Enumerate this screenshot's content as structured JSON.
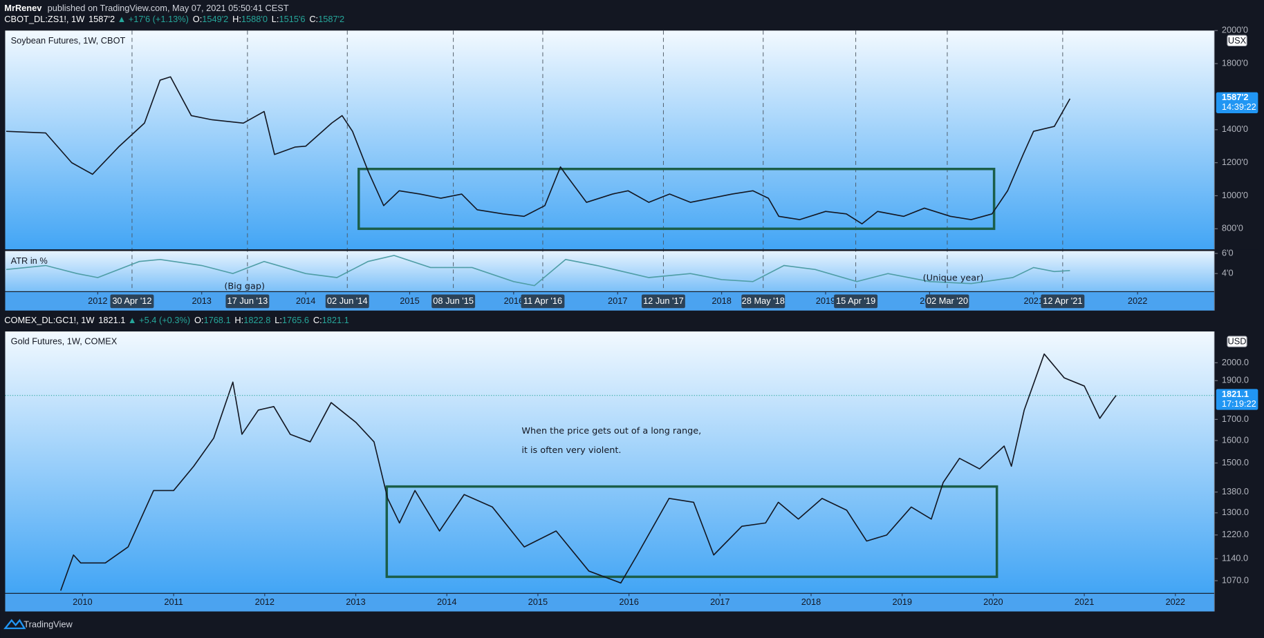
{
  "header": {
    "author": "MrRenev",
    "published": "published on TradingView.com, May 07, 2021 05:50:41 CEST"
  },
  "chart_data": [
    {
      "type": "line",
      "symbol": "CBOT_DL:ZS1!, 1W",
      "change": "▲ +17'6 (+1.13%)",
      "ohlc_labels": [
        "O:",
        "H:",
        "L:",
        "C:"
      ],
      "ohlc_values": [
        "1549'2",
        "1588'0",
        "1515'6",
        "1587'2"
      ],
      "title": "Soybean Futures, 1W, CBOT",
      "currency": "USX",
      "last_price": {
        "value": 1587.25,
        "label": "1587'2"
      },
      "countdown": "14:39:22",
      "color": "#131722",
      "x": [
        2011.12,
        2011.5,
        2011.75,
        2011.95,
        2012.2,
        2012.45,
        2012.6,
        2012.7,
        2012.9,
        2013.1,
        2013.4,
        2013.6,
        2013.7,
        2013.9,
        2014.0,
        2014.25,
        2014.35,
        2014.45,
        2014.6,
        2014.75,
        2014.9,
        2015.1,
        2015.3,
        2015.5,
        2015.65,
        2015.9,
        2016.1,
        2016.3,
        2016.45,
        2016.5,
        2016.7,
        2016.95,
        2017.1,
        2017.3,
        2017.5,
        2017.7,
        2017.9,
        2018.1,
        2018.3,
        2018.45,
        2018.55,
        2018.75,
        2019.0,
        2019.2,
        2019.35,
        2019.5,
        2019.75,
        2019.95,
        2020.2,
        2020.4,
        2020.6,
        2020.75,
        2020.9,
        2021.0,
        2021.2,
        2021.35
      ],
      "values": [
        1390,
        1380,
        1200,
        1130,
        1295,
        1440,
        1700,
        1720,
        1485,
        1460,
        1440,
        1510,
        1250,
        1295,
        1300,
        1440,
        1485,
        1390,
        1150,
        940,
        1030,
        1010,
        985,
        1010,
        915,
        890,
        875,
        940,
        1175,
        1130,
        960,
        1010,
        1030,
        960,
        1010,
        960,
        985,
        1010,
        1030,
        985,
        875,
        855,
        905,
        890,
        830,
        905,
        875,
        925,
        875,
        855,
        890,
        1030,
        1250,
        1390,
        1420,
        1587.25
      ],
      "xlim": [
        2011.11,
        2022.74
      ],
      "xticks": [
        2012,
        2013,
        2014,
        2015,
        2016,
        2017,
        2018,
        2019,
        2020,
        2021,
        2022
      ],
      "markers": [
        {
          "value": 2012.33,
          "label": "30 Apr '12"
        },
        {
          "value": 2013.44,
          "label": "17 Jun '13"
        },
        {
          "value": 2014.4,
          "label": "02 Jun '14"
        },
        {
          "value": 2015.42,
          "label": "08 Jun '15"
        },
        {
          "value": 2016.28,
          "label": "11 Apr '16"
        },
        {
          "value": 2017.44,
          "label": "12 Jun '17"
        },
        {
          "value": 2018.4,
          "label": "28 May '18"
        },
        {
          "value": 2019.29,
          "label": "15 Apr '19"
        },
        {
          "value": 2020.17,
          "label": "02 Mar '20"
        },
        {
          "value": 2021.28,
          "label": "12 Apr '21"
        }
      ],
      "ylim": [
        675,
        2000
      ],
      "log": false,
      "grid": false,
      "yticks": [
        {
          "value": 800,
          "label": "800'0"
        },
        {
          "value": 1000,
          "label": "1000'0"
        },
        {
          "value": 1200,
          "label": "1200'0"
        },
        {
          "value": 1400,
          "label": "1400'0"
        },
        {
          "value": 1800,
          "label": "1800'0"
        },
        {
          "value": 2000,
          "label": "2000'0"
        }
      ],
      "range_box": {
        "x": [
          2014.51,
          2020.62
        ],
        "y": [
          800,
          1162
        ]
      },
      "box_color": "#1b5e4a",
      "indicator": {
        "title": "ATR in %",
        "color": "#4f9ea6",
        "x": [
          2011.12,
          2011.5,
          2011.8,
          2012.0,
          2012.4,
          2012.6,
          2013.0,
          2013.3,
          2013.6,
          2014.0,
          2014.3,
          2014.6,
          2014.85,
          2015.2,
          2015.6,
          2016.0,
          2016.2,
          2016.5,
          2016.8,
          2017.3,
          2017.7,
          2018.0,
          2018.3,
          2018.6,
          2018.9,
          2019.3,
          2019.6,
          2020.0,
          2020.4,
          2020.8,
          2021.0,
          2021.2,
          2021.35
        ],
        "values": [
          4.4,
          4.8,
          4.0,
          3.6,
          5.2,
          5.4,
          4.8,
          4.0,
          5.2,
          4.0,
          3.6,
          5.2,
          5.8,
          4.6,
          4.6,
          3.2,
          2.8,
          5.4,
          4.8,
          3.6,
          4.0,
          3.4,
          3.2,
          4.8,
          4.4,
          3.2,
          4.0,
          3.2,
          3.0,
          3.6,
          4.6,
          4.2,
          4.3
        ],
        "ylim": [
          2.24,
          6.24
        ],
        "yticks": [
          {
            "value": 6,
            "label": "6'0"
          },
          {
            "value": 4,
            "label": "4'0"
          }
        ]
      },
      "annotations": [
        "(Big gap)",
        "(Unique year)"
      ]
    },
    {
      "type": "line",
      "symbol": "COMEX_DL:GC1!, 1W",
      "change": "▲ +5.4 (+0.3%)",
      "ohlc_labels": [
        "O:",
        "H:",
        "L:",
        "C:"
      ],
      "ohlc_values": [
        "1768.1",
        "1822.8",
        "1765.6",
        "1821.1"
      ],
      "title": "Gold Futures, 1W, COMEX",
      "currency": "USD",
      "last_price": 1821.1,
      "countdown": "17:19:22",
      "color": "#131722",
      "x": [
        2009.76,
        2009.9,
        2009.98,
        2010.25,
        2010.5,
        2010.78,
        2011.0,
        2011.22,
        2011.44,
        2011.65,
        2011.75,
        2011.93,
        2012.1,
        2012.28,
        2012.5,
        2012.73,
        2013.0,
        2013.2,
        2013.35,
        2013.48,
        2013.65,
        2013.92,
        2014.19,
        2014.5,
        2014.85,
        2015.2,
        2015.56,
        2015.91,
        2016.09,
        2016.44,
        2016.71,
        2016.93,
        2017.24,
        2017.5,
        2017.64,
        2017.86,
        2018.12,
        2018.39,
        2018.61,
        2018.83,
        2019.1,
        2019.32,
        2019.45,
        2019.63,
        2019.85,
        2020.12,
        2020.2,
        2020.34,
        2020.56,
        2020.78,
        2021.0,
        2021.17,
        2021.31,
        2021.35
      ],
      "values": [
        1040,
        1152,
        1126,
        1126,
        1179,
        1386,
        1386,
        1486,
        1611,
        1892,
        1629,
        1746,
        1764,
        1629,
        1594,
        1784,
        1686,
        1594,
        1355,
        1263,
        1386,
        1234,
        1370,
        1322,
        1179,
        1234,
        1100,
        1063,
        1152,
        1355,
        1340,
        1152,
        1251,
        1263,
        1340,
        1277,
        1355,
        1310,
        1199,
        1220,
        1322,
        1277,
        1418,
        1520,
        1475,
        1575,
        1486,
        1746,
        2051,
        1915,
        1871,
        1705,
        1796,
        1821.1
      ],
      "xlim": [
        2009.15,
        2022.43
      ],
      "xticks": [
        2010,
        2011,
        2012,
        2013,
        2014,
        2015,
        2016,
        2017,
        2018,
        2019,
        2020,
        2021,
        2022
      ],
      "ylim": [
        1033,
        2188
      ],
      "log": true,
      "grid": false,
      "yticks": [
        {
          "value": 1070,
          "label": "1070.0"
        },
        {
          "value": 1140,
          "label": "1140.0"
        },
        {
          "value": 1220,
          "label": "1220.0"
        },
        {
          "value": 1300,
          "label": "1300.0"
        },
        {
          "value": 1380,
          "label": "1380.0"
        },
        {
          "value": 1500,
          "label": "1500.0"
        },
        {
          "value": 1600,
          "label": "1600.0"
        },
        {
          "value": 1700,
          "label": "1700.0"
        },
        {
          "value": 1900,
          "label": "1900.0"
        },
        {
          "value": 2000,
          "label": "2000.0"
        }
      ],
      "range_box": {
        "x": [
          2013.34,
          2020.04
        ],
        "y": [
          1082,
          1402
        ]
      },
      "box_color": "#1b5e4a",
      "annotations": [
        "When the price gets out of a long range,",
        "it is often very violent."
      ]
    }
  ],
  "footer": {
    "brand": "TradingView"
  }
}
